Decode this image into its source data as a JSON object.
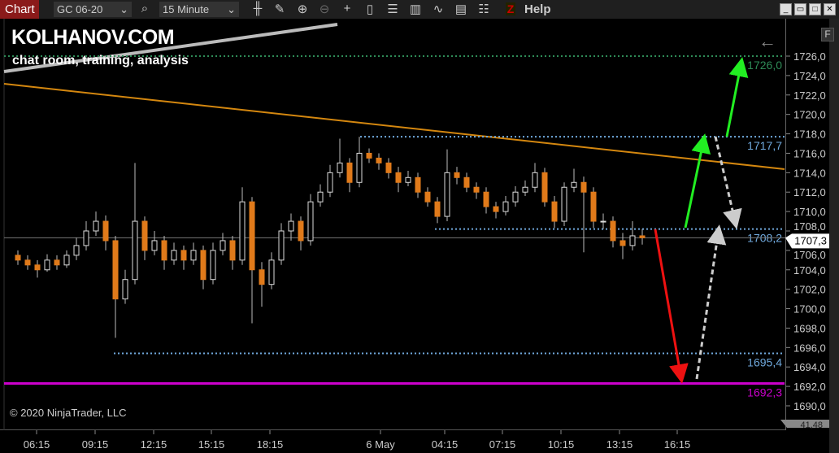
{
  "toolbar": {
    "chart_tab": "Chart",
    "instrument": "GC 06-20",
    "interval": "15 Minute",
    "help": "Help",
    "icons": [
      "search-icon",
      "bar-type-icon",
      "pencil-icon",
      "zoom-in-icon",
      "zoom-out-icon",
      "crosshair-icon",
      "data-box-icon",
      "templates-icon",
      "indicators-icon",
      "strategies-icon",
      "properties-icon",
      "list-icon"
    ]
  },
  "overlay": {
    "brand": "KOLHANOV.COM",
    "tagline": "chat room, training, analysis",
    "copyright": "© 2020 NinjaTrader, LLC",
    "f_button": "F",
    "back_arrow": "←"
  },
  "colors": {
    "up": "#ffffff",
    "down": "#e07a1a",
    "level": "#6fa8dc",
    "green_level": "#2e8b57",
    "magenta": "#cc00cc",
    "trend": "#d4870f",
    "arrow_green": "#22ee22",
    "arrow_red": "#ee1111",
    "arrow_gray": "#cccccc"
  },
  "chart_data": {
    "type": "candlestick",
    "ylim": [
      1688.5,
      1728.5
    ],
    "y_ticks": [
      "1726,0",
      "1724,0",
      "1722,0",
      "1720,0",
      "1718,0",
      "1716,0",
      "1714,0",
      "1712,0",
      "1710,0",
      "1708,0",
      "1706,0",
      "1704,0",
      "1702,0",
      "1700,0",
      "1698,0",
      "1696,0",
      "1694,0",
      "1692,0",
      "1690,0"
    ],
    "y_tick_values": [
      1726,
      1724,
      1722,
      1720,
      1718,
      1716,
      1714,
      1712,
      1710,
      1708,
      1706,
      1704,
      1702,
      1700,
      1698,
      1696,
      1694,
      1692,
      1690
    ],
    "x_ticks": [
      "06:15",
      "09:15",
      "12:15",
      "15:15",
      "18:15",
      "6 May",
      "04:15",
      "07:15",
      "10:15",
      "13:15",
      "16:15"
    ],
    "current_price": "1707,3",
    "current_value": 1707.3,
    "bottom_label": "41,48",
    "first_open": 1705.5,
    "candles_hlc": [
      [
        1706,
        1704.5,
        1705
      ],
      [
        1705.5,
        1704,
        1704.5
      ],
      [
        1705,
        1703.2,
        1704
      ],
      [
        1705.6,
        1703.8,
        1705
      ],
      [
        1705.5,
        1704,
        1704.5
      ],
      [
        1706,
        1704.2,
        1705.5
      ],
      [
        1707.3,
        1705,
        1706.5
      ],
      [
        1709,
        1706,
        1708
      ],
      [
        1710,
        1707.5,
        1709
      ],
      [
        1709.6,
        1706,
        1707
      ],
      [
        1707.5,
        1697,
        1701
      ],
      [
        1704,
        1700.5,
        1703
      ],
      [
        1715,
        1702.5,
        1709
      ],
      [
        1709.5,
        1705,
        1706
      ],
      [
        1708,
        1705.5,
        1707
      ],
      [
        1707.5,
        1704,
        1705
      ],
      [
        1706.8,
        1704.5,
        1706
      ],
      [
        1706.5,
        1704,
        1705
      ],
      [
        1706.8,
        1704.5,
        1706
      ],
      [
        1706.5,
        1702,
        1703
      ],
      [
        1706.8,
        1702.5,
        1706
      ],
      [
        1707.8,
        1705.5,
        1707
      ],
      [
        1707.5,
        1704,
        1705
      ],
      [
        1712.5,
        1704.5,
        1711
      ],
      [
        1711.5,
        1698.5,
        1704
      ],
      [
        1704.8,
        1700.2,
        1702.5
      ],
      [
        1705.8,
        1702,
        1705
      ],
      [
        1708.8,
        1704.5,
        1708
      ],
      [
        1709.8,
        1707,
        1709
      ],
      [
        1709.5,
        1706,
        1707
      ],
      [
        1711.8,
        1706.5,
        1711
      ],
      [
        1712.8,
        1710.5,
        1712
      ],
      [
        1714.8,
        1711.5,
        1714
      ],
      [
        1717.5,
        1713.5,
        1715
      ],
      [
        1715.5,
        1712,
        1713
      ],
      [
        1717.7,
        1712.5,
        1716
      ],
      [
        1716.5,
        1715,
        1715.5
      ],
      [
        1716,
        1714.3,
        1715
      ],
      [
        1715.5,
        1713.4,
        1714
      ],
      [
        1714.6,
        1712,
        1713
      ],
      [
        1714.2,
        1712.6,
        1713.5
      ],
      [
        1714,
        1711.4,
        1712
      ],
      [
        1712.5,
        1710.5,
        1711
      ],
      [
        1711.5,
        1708.8,
        1709.5
      ],
      [
        1716.4,
        1709,
        1714
      ],
      [
        1714.6,
        1712.8,
        1713.5
      ],
      [
        1714,
        1712,
        1712.5
      ],
      [
        1713,
        1711.3,
        1712
      ],
      [
        1712.5,
        1709.8,
        1710.5
      ],
      [
        1711,
        1709.3,
        1710
      ],
      [
        1711.6,
        1709.6,
        1711
      ],
      [
        1712.6,
        1710.5,
        1712
      ],
      [
        1713.2,
        1711.6,
        1712.5
      ],
      [
        1715,
        1712,
        1714
      ],
      [
        1714.5,
        1710.5,
        1711
      ],
      [
        1711.6,
        1708.3,
        1709
      ],
      [
        1713,
        1708.5,
        1712.5
      ],
      [
        1714.4,
        1712,
        1713
      ],
      [
        1713.6,
        1705.8,
        1712
      ],
      [
        1712.5,
        1708.3,
        1709
      ],
      [
        1709.8,
        1708.2,
        1709
      ],
      [
        1709.5,
        1706.3,
        1707
      ],
      [
        1707.8,
        1705.1,
        1706.5
      ],
      [
        1709,
        1706,
        1707.5
      ],
      [
        1708.2,
        1706.6,
        1707.3
      ]
    ],
    "levels": [
      {
        "label": "1726,0",
        "value": 1726.0,
        "color": "#2e8b57",
        "style": "dotted"
      },
      {
        "label": "1717,7",
        "value": 1717.7,
        "color": "#6fa8dc",
        "style": "dotted"
      },
      {
        "label": "1708,2",
        "value": 1708.2,
        "color": "#6fa8dc",
        "style": "dotted"
      },
      {
        "label": "1695,4",
        "value": 1695.4,
        "color": "#6fa8dc",
        "style": "dotted"
      },
      {
        "label": "1692,3",
        "value": 1692.3,
        "color": "#cc00cc",
        "style": "solid"
      }
    ]
  }
}
